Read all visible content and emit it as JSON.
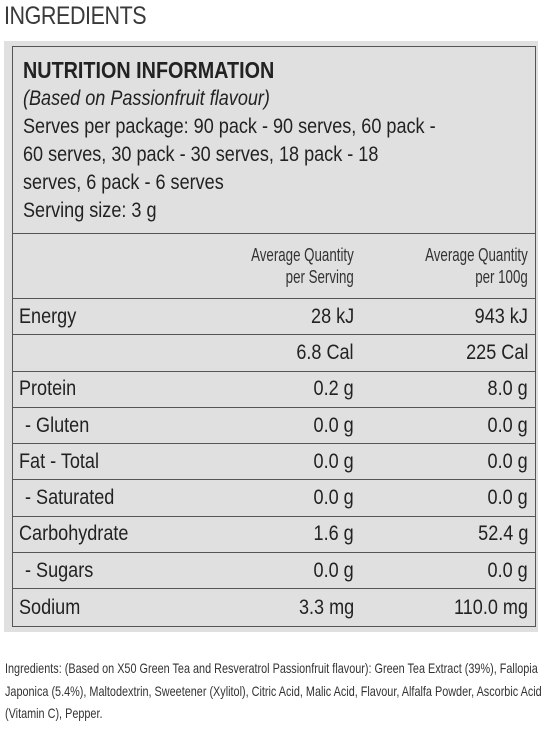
{
  "page": {
    "heading": "INGREDIENTS"
  },
  "nutrition": {
    "title": "NUTRITION INFORMATION",
    "flavour_note": "(Based on Passionfruit flavour)",
    "serves_label": "Serves per package:",
    "serves_value": "90 pack - 90 serves, 60 pack - 60 serves, 30 pack - 30 serves, 18 pack - 18 serves, 6 pack - 6 serves",
    "serving_size": "Serving size: 3 g",
    "columns": [
      {
        "line1": "Average Quantity",
        "line2": "per Serving"
      },
      {
        "line1": "Average Quantity",
        "line2": "per 100g"
      }
    ],
    "rows": [
      {
        "name": "Energy",
        "per_serving": "28 kJ",
        "per_100g": "943 kJ"
      },
      {
        "name": "",
        "per_serving": "6.8 Cal",
        "per_100g": "225 Cal"
      },
      {
        "name": "Protein",
        "per_serving": "0.2 g",
        "per_100g": "8.0 g"
      },
      {
        "name": "- Gluten",
        "per_serving": "0.0 g",
        "per_100g": "0.0 g"
      },
      {
        "name": "Fat  - Total",
        "per_serving": "0.0 g",
        "per_100g": "0.0 g"
      },
      {
        "name": "- Saturated",
        "per_serving": "0.0 g",
        "per_100g": "0.0 g"
      },
      {
        "name": "Carbohydrate",
        "per_serving": "1.6 g",
        "per_100g": "52.4 g"
      },
      {
        "name": "- Sugars",
        "per_serving": "0.0 g",
        "per_100g": "0.0 g"
      },
      {
        "name": "Sodium",
        "per_serving": "3.3 mg",
        "per_100g": "110.0 mg"
      }
    ]
  },
  "ingredients": {
    "label": "Ingredients",
    "text": ": (Based on X50 Green Tea and Resveratrol Passionfruit flavour): Green Tea Extract (39%), Fallopia Japonica (5.4%), Maltodextrin, Sweetener (Xylitol), Citric Acid, Malic Acid, Flavour, Alfalfa Powder, Ascorbic Acid (Vitamin C), Pepper."
  }
}
